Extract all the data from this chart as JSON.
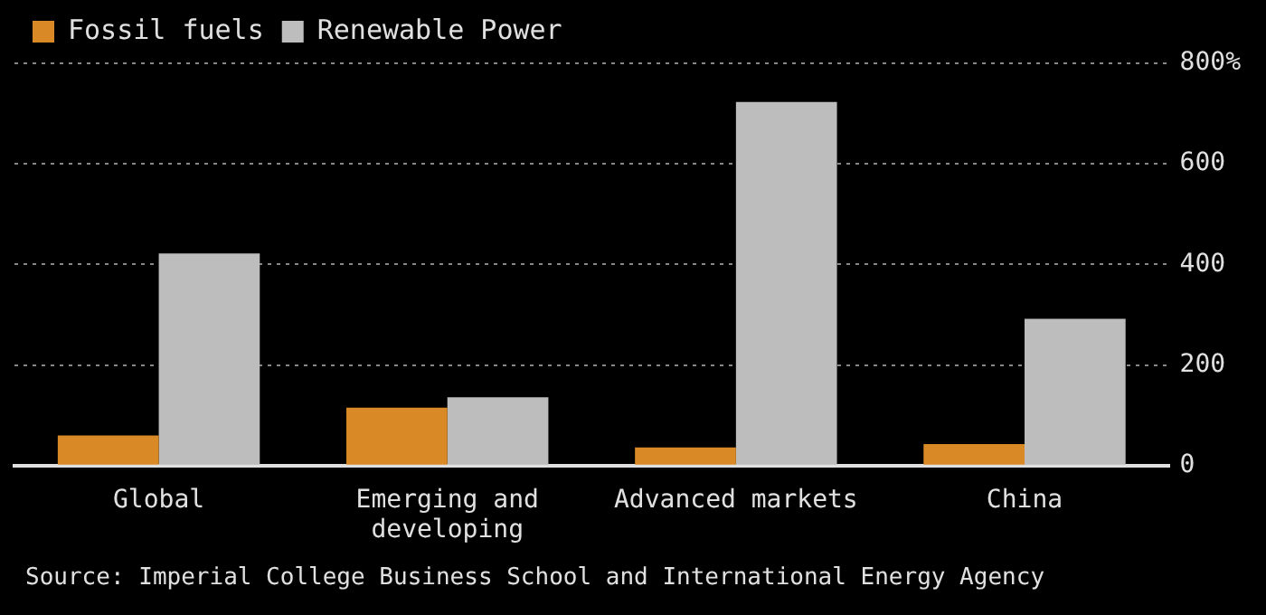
{
  "chart_data": {
    "type": "bar",
    "categories": [
      "Global",
      "Emerging and developing",
      "Advanced markets",
      "China"
    ],
    "series": [
      {
        "name": "Fossil fuels",
        "color": "#d98a26",
        "values": [
          60,
          115,
          36,
          43
        ]
      },
      {
        "name": "Renewable Power",
        "color": "#bdbdbd",
        "values": [
          422,
          136,
          723,
          292
        ]
      }
    ],
    "ylim": [
      0,
      800
    ],
    "yticks": [
      0,
      200,
      400,
      {
        "value": 600,
        "label": "600"
      },
      {
        "value": 800,
        "label": "800%"
      }
    ],
    "grid": "y",
    "legend": "top left",
    "annotations": [
      "Source: Imperial College Business School and International Energy Agency"
    ]
  }
}
